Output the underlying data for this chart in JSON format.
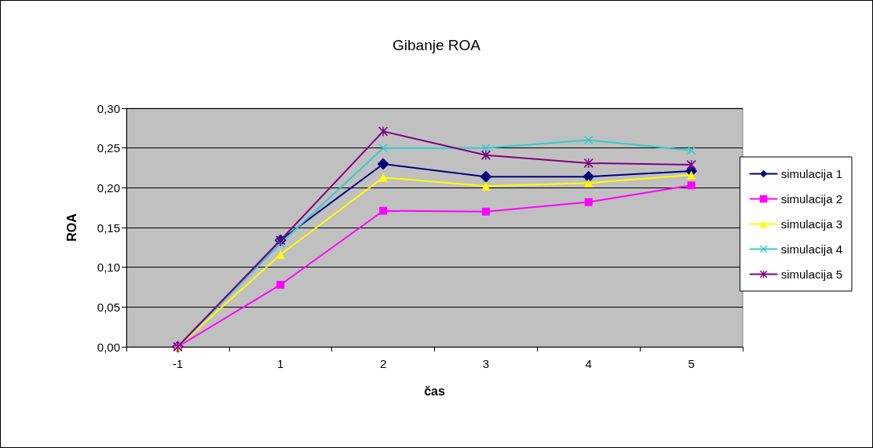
{
  "chart_data": {
    "type": "line",
    "title": "Gibanje ROA",
    "xlabel": "čas",
    "ylabel": "ROA",
    "categories": [
      "-1",
      "1",
      "2",
      "3",
      "4",
      "5"
    ],
    "series": [
      {
        "name": "simulacija 1",
        "color": "#000080",
        "marker": "diamond",
        "values": [
          0,
          0.134,
          0.23,
          0.214,
          0.214,
          0.221
        ]
      },
      {
        "name": "simulacija 2",
        "color": "#ff00ff",
        "marker": "square",
        "values": [
          0,
          0.078,
          0.171,
          0.17,
          0.182,
          0.203
        ]
      },
      {
        "name": "simulacija 3",
        "color": "#ffff00",
        "marker": "triangle",
        "values": [
          0,
          0.116,
          0.213,
          0.202,
          0.206,
          0.216
        ]
      },
      {
        "name": "simulacija 4",
        "color": "#33cccc",
        "marker": "cross",
        "values": [
          0,
          0.13,
          0.25,
          0.25,
          0.26,
          0.247
        ]
      },
      {
        "name": "simulacija 5",
        "color": "#800080",
        "marker": "star",
        "values": [
          0,
          0.134,
          0.271,
          0.241,
          0.231,
          0.229
        ]
      }
    ],
    "ylim": [
      0,
      0.3
    ],
    "yticks": [
      {
        "value": 0,
        "label": "0,00"
      },
      {
        "value": 0.05,
        "label": "0,05"
      },
      {
        "value": 0.1,
        "label": "0,10"
      },
      {
        "value": 0.15,
        "label": "0,15"
      },
      {
        "value": 0.2,
        "label": "0,20"
      },
      {
        "value": 0.25,
        "label": "0,25"
      },
      {
        "value": 0.3,
        "label": "0,30"
      }
    ],
    "grid": "y",
    "legend": "right",
    "line_style": "solid"
  }
}
